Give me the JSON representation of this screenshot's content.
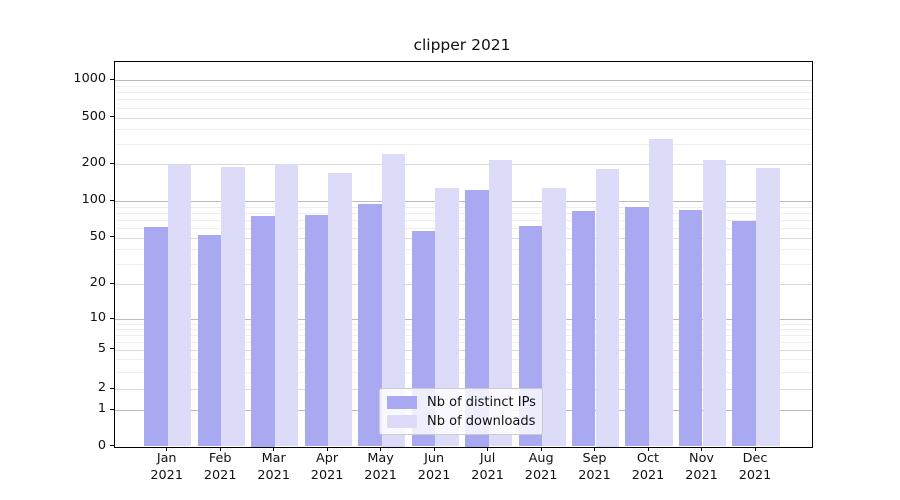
{
  "title": "clipper 2021",
  "chart_data": {
    "type": "bar",
    "title": "clipper 2021",
    "categories": [
      "Jan 2021",
      "Feb 2021",
      "Mar 2021",
      "Apr 2021",
      "May 2021",
      "Jun 2021",
      "Jul 2021",
      "Aug 2021",
      "Sep 2021",
      "Oct 2021",
      "Nov 2021",
      "Dec 2021"
    ],
    "series": [
      {
        "name": "Nb of distinct IPs",
        "color": "#a9a9f2",
        "values": [
          61,
          53,
          76,
          77,
          94,
          57,
          123,
          62,
          83,
          89,
          85,
          68
        ]
      },
      {
        "name": "Nb of downloads",
        "color": "#dcdcf8",
        "values": [
          196,
          189,
          200,
          171,
          245,
          128,
          218,
          127,
          183,
          331,
          216,
          185
        ]
      }
    ],
    "xlabel": "",
    "ylabel": "",
    "yscale": "symlog",
    "y_ticks": [
      0,
      1,
      2,
      5,
      10,
      20,
      50,
      100,
      200,
      500,
      1000
    ],
    "ylim": [
      0,
      1400
    ],
    "grid": true,
    "legend_position": "lower-center-inside"
  },
  "colors": {
    "bar_dark": "#a9a9f2",
    "bar_light": "#dcdcf8",
    "grid_major": "#bcbcbc",
    "grid_mid": "#dadada",
    "grid_minor": "#eeeeee",
    "spine": "#000000",
    "text": "#111111"
  }
}
